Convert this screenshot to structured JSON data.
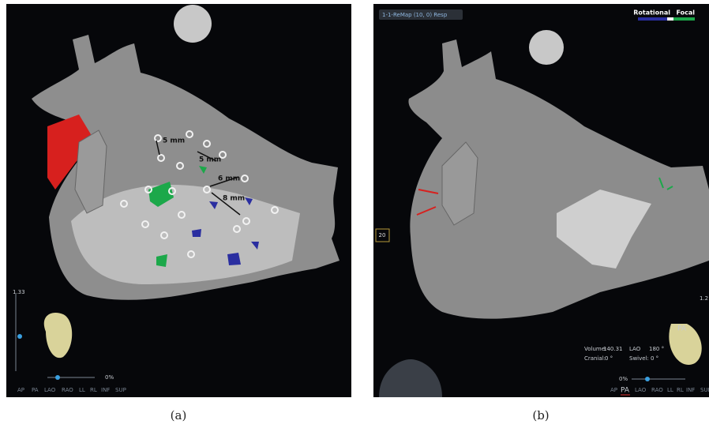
{
  "panel_a": {
    "measurements": [
      "5 mm",
      "5 mm",
      "6 mm",
      "8 mm"
    ],
    "zoom": "1.33",
    "slider_value": "0%",
    "views": [
      "AP",
      "PA",
      "LAO",
      "RAO",
      "LL",
      "RL",
      "INF",
      "SUP"
    ],
    "caption": "(a)"
  },
  "panel_b": {
    "map_name": "1-1-ReMap (10, 0) Resp",
    "legend": [
      "Rotational",
      "Focal"
    ],
    "spinner_value": "20",
    "stats": [
      {
        "label": "Volume:",
        "value": "140.31"
      },
      {
        "label": "LAO",
        "value": "180 °"
      },
      {
        "label": "Cranial:",
        "value": "0 °"
      },
      {
        "label": "Swivel:",
        "value": "0 °"
      }
    ],
    "orientation": "PA",
    "zoom": "1.2",
    "slider_value": "0%",
    "views": [
      "AP",
      "PA",
      "LAO",
      "RAO",
      "LL",
      "RL",
      "INF",
      "SUP"
    ],
    "caption": "(b)"
  }
}
